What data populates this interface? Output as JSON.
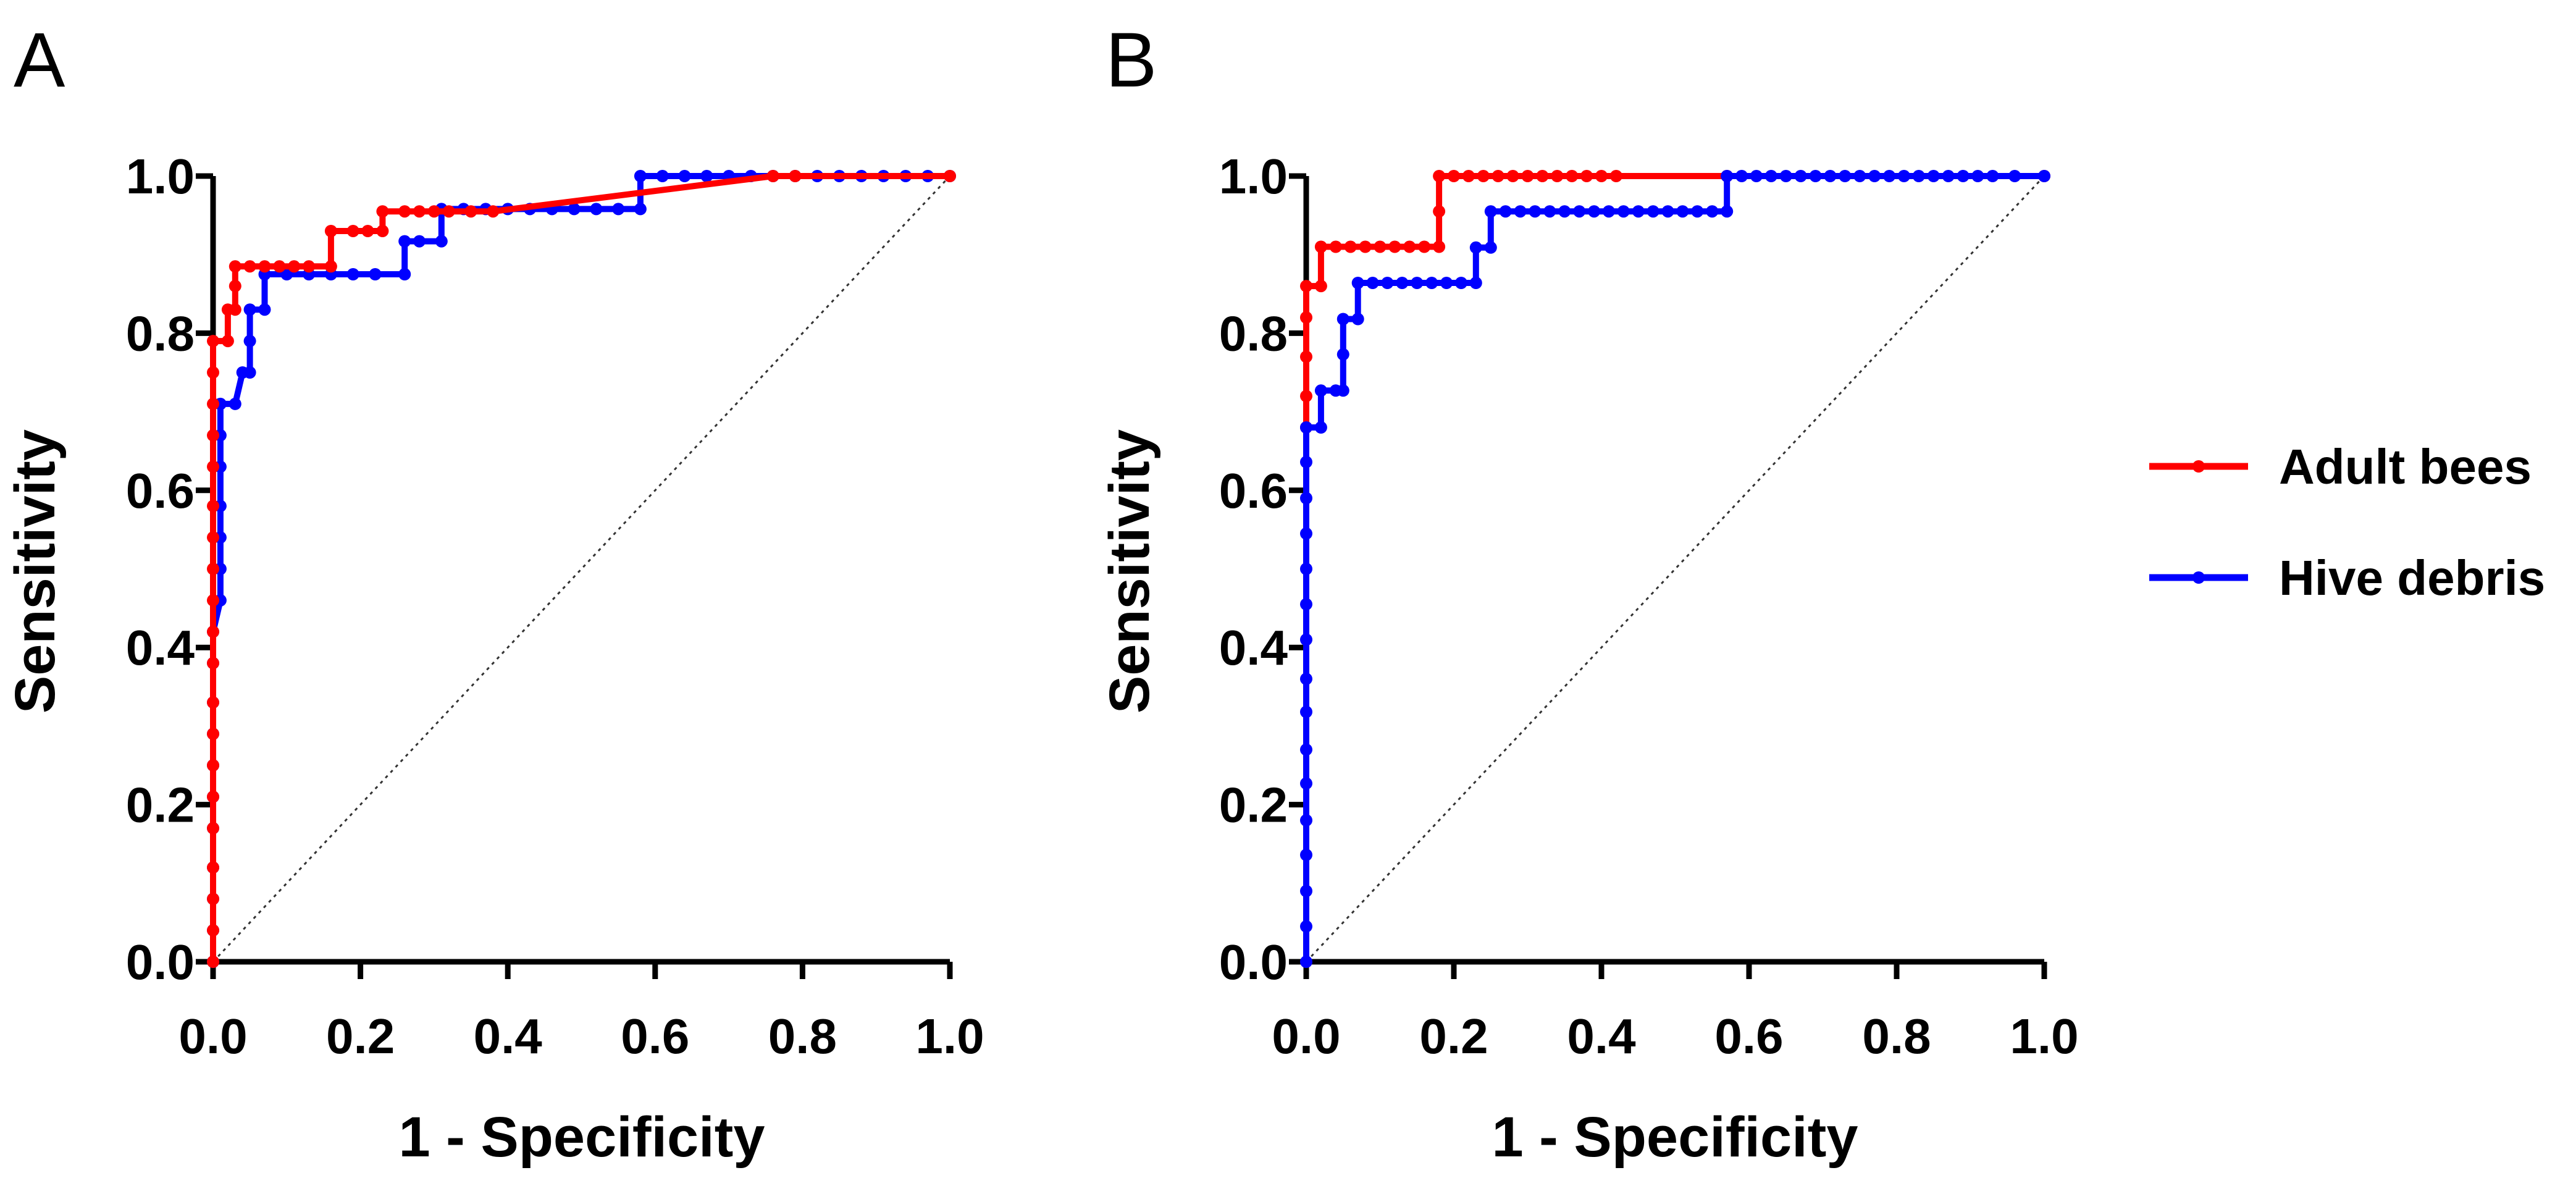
{
  "colors": {
    "adult": "#ff0000",
    "debris": "#0000ff",
    "axis": "#000000"
  },
  "legend": {
    "entries": [
      {
        "name": "Adult bees",
        "color": "#ff0000"
      },
      {
        "name": "Hive debris",
        "color": "#0000ff"
      }
    ]
  },
  "chart_data": [
    {
      "panel": "A",
      "type": "line",
      "subtype": "ROC curve (step)",
      "xlabel": "1 - Specificity",
      "ylabel": "Sensitivity",
      "xlim": [
        0,
        1
      ],
      "ylim": [
        0,
        1
      ],
      "ticks": [
        "0.0",
        "0.2",
        "0.4",
        "0.6",
        "0.8",
        "1.0"
      ],
      "reference_line": {
        "from": [
          0,
          0
        ],
        "to": [
          1,
          1
        ],
        "style": "dotted"
      },
      "series": [
        {
          "name": "Hive debris",
          "color": "#0000ff",
          "points": [
            [
              0,
              0
            ],
            [
              0,
              0.04
            ],
            [
              0,
              0.08
            ],
            [
              0,
              0.12
            ],
            [
              0,
              0.17
            ],
            [
              0,
              0.21
            ],
            [
              0,
              0.25
            ],
            [
              0,
              0.29
            ],
            [
              0,
              0.33
            ],
            [
              0,
              0.38
            ],
            [
              0,
              0.42
            ],
            [
              0.01,
              0.46
            ],
            [
              0.01,
              0.5
            ],
            [
              0.01,
              0.54
            ],
            [
              0.01,
              0.58
            ],
            [
              0.01,
              0.63
            ],
            [
              0.01,
              0.67
            ],
            [
              0.01,
              0.71
            ],
            [
              0.03,
              0.71
            ],
            [
              0.04,
              0.75
            ],
            [
              0.05,
              0.75
            ],
            [
              0.05,
              0.79
            ],
            [
              0.05,
              0.83
            ],
            [
              0.07,
              0.83
            ],
            [
              0.07,
              0.875
            ],
            [
              0.1,
              0.875
            ],
            [
              0.13,
              0.875
            ],
            [
              0.16,
              0.875
            ],
            [
              0.19,
              0.875
            ],
            [
              0.22,
              0.875
            ],
            [
              0.26,
              0.875
            ],
            [
              0.26,
              0.917
            ],
            [
              0.28,
              0.917
            ],
            [
              0.31,
              0.917
            ],
            [
              0.31,
              0.958
            ],
            [
              0.34,
              0.958
            ],
            [
              0.37,
              0.958
            ],
            [
              0.4,
              0.958
            ],
            [
              0.43,
              0.958
            ],
            [
              0.46,
              0.958
            ],
            [
              0.49,
              0.958
            ],
            [
              0.52,
              0.958
            ],
            [
              0.55,
              0.958
            ],
            [
              0.58,
              0.958
            ],
            [
              0.58,
              1
            ],
            [
              0.61,
              1
            ],
            [
              0.64,
              1
            ],
            [
              0.67,
              1
            ],
            [
              0.7,
              1
            ],
            [
              0.73,
              1
            ],
            [
              0.76,
              1
            ],
            [
              0.79,
              1
            ],
            [
              0.82,
              1
            ],
            [
              0.85,
              1
            ],
            [
              0.88,
              1
            ],
            [
              0.91,
              1
            ],
            [
              0.94,
              1
            ],
            [
              0.97,
              1
            ],
            [
              1,
              1
            ]
          ]
        },
        {
          "name": "Adult bees",
          "color": "#ff0000",
          "points": [
            [
              0,
              0
            ],
            [
              0,
              0.04
            ],
            [
              0,
              0.08
            ],
            [
              0,
              0.12
            ],
            [
              0,
              0.17
            ],
            [
              0,
              0.21
            ],
            [
              0,
              0.25
            ],
            [
              0,
              0.29
            ],
            [
              0,
              0.33
            ],
            [
              0,
              0.38
            ],
            [
              0,
              0.42
            ],
            [
              0,
              0.46
            ],
            [
              0,
              0.5
            ],
            [
              0,
              0.54
            ],
            [
              0,
              0.58
            ],
            [
              0,
              0.63
            ],
            [
              0,
              0.67
            ],
            [
              0,
              0.71
            ],
            [
              0,
              0.75
            ],
            [
              0,
              0.79
            ],
            [
              0.02,
              0.79
            ],
            [
              0.02,
              0.83
            ],
            [
              0.03,
              0.83
            ],
            [
              0.03,
              0.86
            ],
            [
              0.03,
              0.885
            ],
            [
              0.05,
              0.885
            ],
            [
              0.07,
              0.885
            ],
            [
              0.09,
              0.885
            ],
            [
              0.11,
              0.885
            ],
            [
              0.13,
              0.885
            ],
            [
              0.16,
              0.885
            ],
            [
              0.16,
              0.93
            ],
            [
              0.19,
              0.93
            ],
            [
              0.21,
              0.93
            ],
            [
              0.23,
              0.93
            ],
            [
              0.23,
              0.955
            ],
            [
              0.26,
              0.955
            ],
            [
              0.28,
              0.955
            ],
            [
              0.3,
              0.955
            ],
            [
              0.32,
              0.955
            ],
            [
              0.35,
              0.955
            ],
            [
              0.38,
              0.955
            ],
            [
              0.76,
              1
            ],
            [
              0.79,
              1
            ],
            [
              1,
              1
            ]
          ]
        }
      ]
    },
    {
      "panel": "B",
      "type": "line",
      "subtype": "ROC curve (step)",
      "xlabel": "1 - Specificity",
      "ylabel": "Sensitivity",
      "xlim": [
        0,
        1
      ],
      "ylim": [
        0,
        1
      ],
      "ticks": [
        "0.0",
        "0.2",
        "0.4",
        "0.6",
        "0.8",
        "1.0"
      ],
      "reference_line": {
        "from": [
          0,
          0
        ],
        "to": [
          1,
          1
        ],
        "style": "dotted"
      },
      "series": [
        {
          "name": "Adult bees",
          "color": "#ff0000",
          "points": [
            [
              0,
              0.68
            ],
            [
              0,
              0.72
            ],
            [
              0,
              0.77
            ],
            [
              0,
              0.82
            ],
            [
              0,
              0.86
            ],
            [
              0.02,
              0.86
            ],
            [
              0.02,
              0.91
            ],
            [
              0.04,
              0.91
            ],
            [
              0.06,
              0.91
            ],
            [
              0.08,
              0.91
            ],
            [
              0.1,
              0.91
            ],
            [
              0.12,
              0.91
            ],
            [
              0.14,
              0.91
            ],
            [
              0.16,
              0.91
            ],
            [
              0.18,
              0.91
            ],
            [
              0.18,
              0.955
            ],
            [
              0.18,
              1
            ],
            [
              0.2,
              1
            ],
            [
              0.22,
              1
            ],
            [
              0.24,
              1
            ],
            [
              0.26,
              1
            ],
            [
              0.28,
              1
            ],
            [
              0.3,
              1
            ],
            [
              0.32,
              1
            ],
            [
              0.34,
              1
            ],
            [
              0.36,
              1
            ],
            [
              0.38,
              1
            ],
            [
              0.4,
              1
            ],
            [
              0.42,
              1
            ],
            [
              0.57,
              1
            ],
            [
              1,
              1
            ]
          ]
        },
        {
          "name": "Hive debris",
          "color": "#0000ff",
          "points": [
            [
              0,
              0
            ],
            [
              0,
              0.045
            ],
            [
              0,
              0.09
            ],
            [
              0,
              0.136
            ],
            [
              0,
              0.18
            ],
            [
              0,
              0.227
            ],
            [
              0,
              0.27
            ],
            [
              0,
              0.318
            ],
            [
              0,
              0.36
            ],
            [
              0,
              0.41
            ],
            [
              0,
              0.455
            ],
            [
              0,
              0.5
            ],
            [
              0,
              0.545
            ],
            [
              0,
              0.59
            ],
            [
              0,
              0.636
            ],
            [
              0,
              0.68
            ],
            [
              0.02,
              0.68
            ],
            [
              0.02,
              0.727
            ],
            [
              0.04,
              0.727
            ],
            [
              0.05,
              0.727
            ],
            [
              0.05,
              0.773
            ],
            [
              0.05,
              0.818
            ],
            [
              0.07,
              0.818
            ],
            [
              0.07,
              0.864
            ],
            [
              0.09,
              0.864
            ],
            [
              0.11,
              0.864
            ],
            [
              0.13,
              0.864
            ],
            [
              0.15,
              0.864
            ],
            [
              0.17,
              0.864
            ],
            [
              0.19,
              0.864
            ],
            [
              0.21,
              0.864
            ],
            [
              0.23,
              0.864
            ],
            [
              0.23,
              0.909
            ],
            [
              0.25,
              0.909
            ],
            [
              0.25,
              0.955
            ],
            [
              0.27,
              0.955
            ],
            [
              0.29,
              0.955
            ],
            [
              0.31,
              0.955
            ],
            [
              0.33,
              0.955
            ],
            [
              0.35,
              0.955
            ],
            [
              0.37,
              0.955
            ],
            [
              0.39,
              0.955
            ],
            [
              0.41,
              0.955
            ],
            [
              0.43,
              0.955
            ],
            [
              0.45,
              0.955
            ],
            [
              0.47,
              0.955
            ],
            [
              0.49,
              0.955
            ],
            [
              0.51,
              0.955
            ],
            [
              0.53,
              0.955
            ],
            [
              0.55,
              0.955
            ],
            [
              0.57,
              0.955
            ],
            [
              0.57,
              1
            ],
            [
              0.59,
              1
            ],
            [
              0.61,
              1
            ],
            [
              0.63,
              1
            ],
            [
              0.65,
              1
            ],
            [
              0.67,
              1
            ],
            [
              0.69,
              1
            ],
            [
              0.71,
              1
            ],
            [
              0.73,
              1
            ],
            [
              0.75,
              1
            ],
            [
              0.77,
              1
            ],
            [
              0.79,
              1
            ],
            [
              0.81,
              1
            ],
            [
              0.83,
              1
            ],
            [
              0.85,
              1
            ],
            [
              0.87,
              1
            ],
            [
              0.89,
              1
            ],
            [
              0.91,
              1
            ],
            [
              0.93,
              1
            ],
            [
              0.96,
              1
            ],
            [
              1,
              1
            ]
          ]
        }
      ]
    }
  ]
}
